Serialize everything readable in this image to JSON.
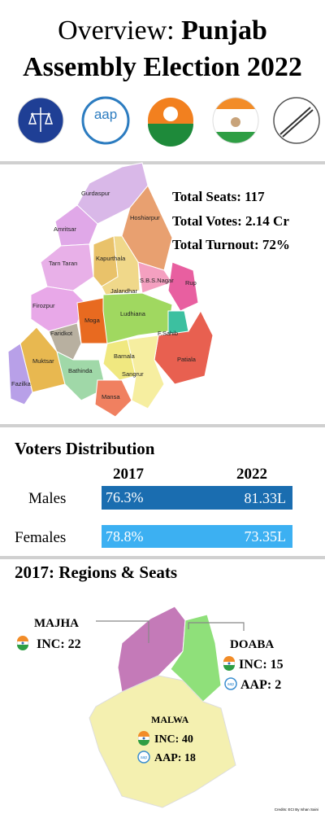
{
  "header": {
    "title_lead": "Overview:",
    "title_bold": "Punjab",
    "title_line2": "Assembly Election 2022",
    "aap_logo": "aap"
  },
  "map": {
    "districts": [
      "Gurdaspur",
      "Amritsar",
      "Hoshiarpur",
      "Tarn Taran",
      "Kapurthala",
      "Jalandhar",
      "S.B.S.Nagar",
      "Rup",
      "Firozpur",
      "Moga",
      "Ludhiana",
      "F.Sahib",
      "Faridkot",
      "Patiala",
      "Muktsar",
      "Fazilka",
      "Bathinda",
      "Barnala",
      "Sangrur",
      "Mansa"
    ]
  },
  "stats": [
    "Total Seats: 117",
    "Total Votes: 2.14 Cr",
    "Total Turnout: 72%"
  ],
  "voters": {
    "title": "Voters Distribution",
    "columns": [
      "2017",
      "2022"
    ],
    "rows": [
      {
        "label": "Males",
        "values": [
          "76.3%",
          "81.33L"
        ]
      },
      {
        "label": "Females",
        "values": [
          "78.8%",
          "73.35L"
        ]
      }
    ]
  },
  "regions": {
    "title": "2017: Regions & Seats",
    "items": [
      {
        "name": "MAJHA",
        "seats": [
          "INC: 22"
        ]
      },
      {
        "name": "DOABA",
        "seats": [
          "INC: 15",
          "AAP: 2"
        ]
      },
      {
        "name": "MALWA",
        "seats": [
          "INC: 40",
          "AAP: 18"
        ]
      }
    ]
  },
  "credits": "Credits: ECI    By Ishan Saini"
}
